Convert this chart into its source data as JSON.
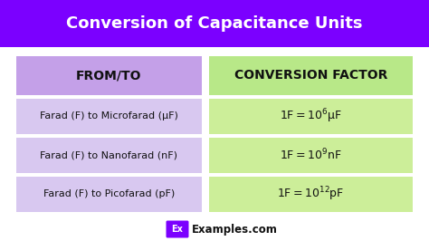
{
  "title": "Conversion of Capacitance Units",
  "title_bg_color": "#7B00FF",
  "title_text_color": "#FFFFFF",
  "bg_color": "#FFFFFF",
  "header_left_text": "FROM/TO",
  "header_right_text": "CONVERSION FACTOR",
  "header_left_bg": "#C4A0E8",
  "header_right_bg": "#B8E888",
  "row_left_bg": "#D8C8F0",
  "row_right_bg": "#CCEE99",
  "rows": [
    {
      "left": "Farad (F) to Microfarad (μF)",
      "right_base": "1 F = 10",
      "right_exp": "6",
      "right_unit": " μF"
    },
    {
      "left": "Farad (F) to Nanofarad (nF)",
      "right_base": "1 F = 10",
      "right_exp": "9",
      "right_unit": " nF"
    },
    {
      "left": "Farad (F) to Picofarad (pF)",
      "right_base": "1 F = 10",
      "right_exp": "12",
      "right_unit": " pF"
    }
  ],
  "watermark_bg": "#7B00FF",
  "watermark_text": "Ex",
  "watermark_label": "Examples.com",
  "text_color_dark": "#111111"
}
